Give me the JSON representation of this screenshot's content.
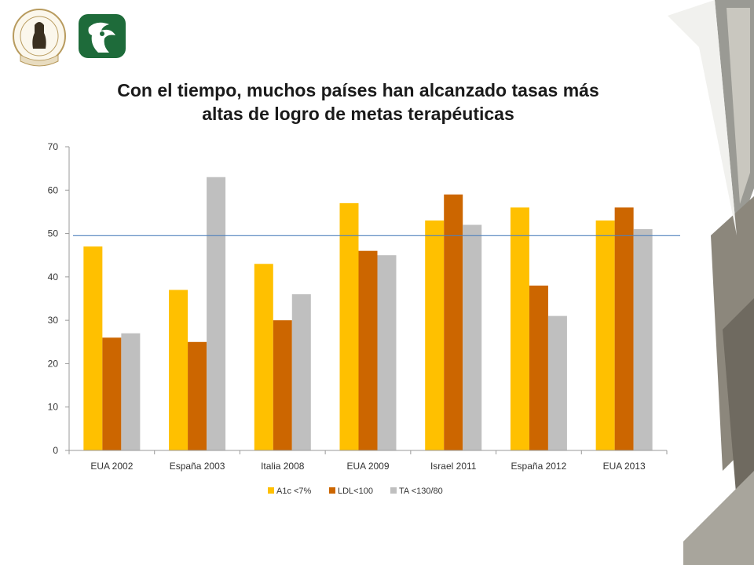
{
  "slide": {
    "title_line1": "Con el tiempo, muchos países han alcanzado tasas más",
    "title_line2": "altas de logro de metas terapéuticas"
  },
  "logos": {
    "academy_seal": "ACADEMIA NACIONAL DE MEDICINA · MÉXICO · 150 AÑOS",
    "imss_emblem": "imss-eagle-emblem"
  },
  "colors": {
    "a1c": "#FFC000",
    "ldl": "#CC6600",
    "ta": "#BFBFBF",
    "reference_line": "#4F81BD",
    "imss_green": "#1E6B3A",
    "seal_gold": "#B89B5E"
  },
  "chart_data": {
    "type": "bar",
    "categories": [
      "EUA 2002",
      "España 2003",
      "Italia 2008",
      "EUA 2009",
      "Israel 2011",
      "España 2012",
      "EUA 2013"
    ],
    "series": [
      {
        "name": "A1c <7%",
        "values": [
          47,
          37,
          43,
          57,
          53,
          56,
          53
        ]
      },
      {
        "name": "LDL<100",
        "values": [
          26,
          25,
          30,
          46,
          59,
          38,
          56
        ]
      },
      {
        "name": "TA <130/80",
        "values": [
          27,
          63,
          36,
          45,
          52,
          31,
          51
        ]
      }
    ],
    "ylim": [
      0,
      70
    ],
    "yticks": [
      0,
      10,
      20,
      30,
      40,
      50,
      60,
      70
    ],
    "reference_line_value": 49.5,
    "grid": false,
    "legend": "bottom",
    "xlabel": "",
    "ylabel": ""
  }
}
